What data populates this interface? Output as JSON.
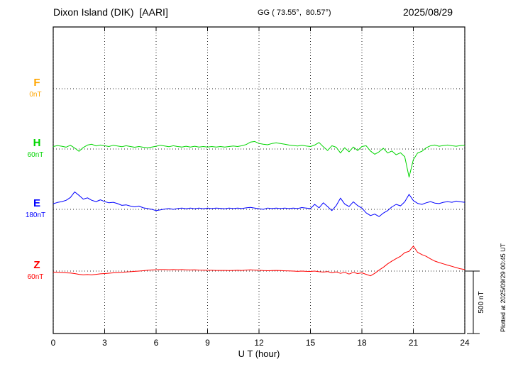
{
  "header": {
    "station": "Dixon Island (DIK)  [AARI]",
    "coords": "GG ( 73.55°,  80.57°)",
    "date": "2025/08/29"
  },
  "side": {
    "plotted_note": "Plotted at 2025/09/29 00:45 UT"
  },
  "chart_data": {
    "type": "line",
    "xlabel": "U T (hour)",
    "x_range": [
      0,
      24
    ],
    "x_ticks": [
      0,
      3,
      6,
      9,
      12,
      15,
      18,
      21,
      24
    ],
    "grid": "dotted-vertical-at-ticks, dotted-horizontal-baselines",
    "legend_position": "left-margin-labels",
    "sample_interval_hours": 0.25,
    "scale_bar": {
      "label": "500 nT",
      "nT": 500
    },
    "series": [
      {
        "name": "F",
        "baseline_label": "0nT",
        "color": "#FFA500",
        "values": []
      },
      {
        "name": "H",
        "baseline_label": "60nT",
        "color": "#00D500",
        "values": [
          20,
          28,
          22,
          15,
          30,
          8,
          -18,
          12,
          32,
          38,
          25,
          32,
          26,
          20,
          30,
          24,
          18,
          26,
          20,
          14,
          20,
          14,
          10,
          16,
          22,
          30,
          24,
          18,
          26,
          20,
          16,
          22,
          16,
          22,
          16,
          20,
          16,
          20,
          16,
          20,
          16,
          20,
          24,
          20,
          26,
          36,
          55,
          60,
          45,
          38,
          34,
          44,
          50,
          44,
          38,
          32,
          28,
          24,
          30,
          24,
          20,
          32,
          52,
          18,
          -12,
          26,
          14,
          -32,
          10,
          -22,
          16,
          -12,
          20,
          26,
          -16,
          -42,
          -22,
          6,
          -32,
          -16,
          -46,
          -30,
          -62,
          -225,
          -85,
          -32,
          -18,
          10,
          26,
          32,
          22,
          28,
          32,
          26,
          22,
          28,
          30
        ]
      },
      {
        "name": "E",
        "baseline_label": "180nT",
        "color": "#0000FF",
        "values": [
          45,
          55,
          62,
          72,
          95,
          140,
          112,
          82,
          92,
          72,
          62,
          76,
          62,
          52,
          56,
          46,
          32,
          36,
          26,
          20,
          26,
          12,
          6,
          0,
          -10,
          -4,
          2,
          6,
          0,
          6,
          10,
          5,
          10,
          5,
          10,
          5,
          10,
          6,
          10,
          8,
          5,
          10,
          6,
          10,
          6,
          12,
          16,
          10,
          5,
          0,
          10,
          6,
          10,
          6,
          10,
          6,
          10,
          6,
          14,
          10,
          6,
          40,
          12,
          52,
          22,
          -10,
          30,
          90,
          42,
          22,
          60,
          30,
          10,
          -28,
          -50,
          -38,
          -58,
          -30,
          -10,
          20,
          40,
          28,
          60,
          120,
          70,
          48,
          40,
          52,
          62,
          50,
          46,
          56,
          62,
          56,
          66,
          60,
          56
        ]
      },
      {
        "name": "Z",
        "baseline_label": "60nT",
        "color": "#FF0000",
        "values": [
          -8,
          -10,
          -12,
          -14,
          -16,
          -20,
          -26,
          -30,
          -28,
          -30,
          -26,
          -22,
          -20,
          -17,
          -14,
          -12,
          -10,
          -7,
          -5,
          -2,
          0,
          3,
          6,
          9,
          11,
          12,
          12,
          11,
          12,
          11,
          12,
          10,
          9,
          10,
          8,
          7,
          6,
          6,
          5,
          5,
          5,
          4,
          5,
          6,
          5,
          8,
          10,
          8,
          6,
          4,
          3,
          4,
          5,
          4,
          2,
          1,
          0,
          -2,
          0,
          -2,
          -3,
          0,
          -5,
          -8,
          -4,
          -14,
          -6,
          -18,
          -10,
          -24,
          -10,
          -20,
          -14,
          -26,
          -38,
          -18,
          8,
          30,
          58,
          80,
          100,
          118,
          148,
          158,
          200,
          150,
          132,
          118,
          98,
          80,
          68,
          58,
          48,
          38,
          28,
          18,
          12
        ]
      }
    ]
  }
}
